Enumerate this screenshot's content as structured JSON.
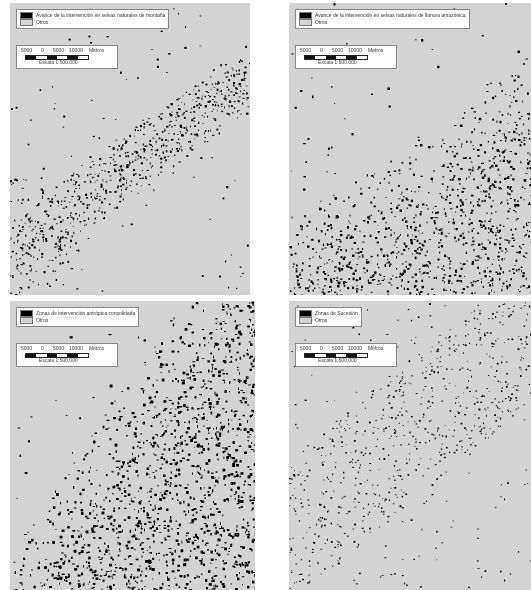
{
  "panels": [
    {
      "legend_black": "Avance de la intervención en selvas naturales de montaña",
      "legend_gray": "Otros"
    },
    {
      "legend_black": "Avance de la intervención en selvas naturales de llanura amazónica",
      "legend_gray": "Otros"
    },
    {
      "legend_black": "Zonas de intervención antrópica consolidada",
      "legend_gray": "Otros"
    },
    {
      "legend_black": "Zonas de Sucesión",
      "legend_gray": "Otros"
    }
  ],
  "scale": {
    "ticks": [
      "5000",
      "0",
      "5000",
      "10000",
      "Metros"
    ],
    "text": "Escala 1:500.000"
  },
  "colors": {
    "map_background": "#d3d3d3",
    "feature": "#000000"
  }
}
